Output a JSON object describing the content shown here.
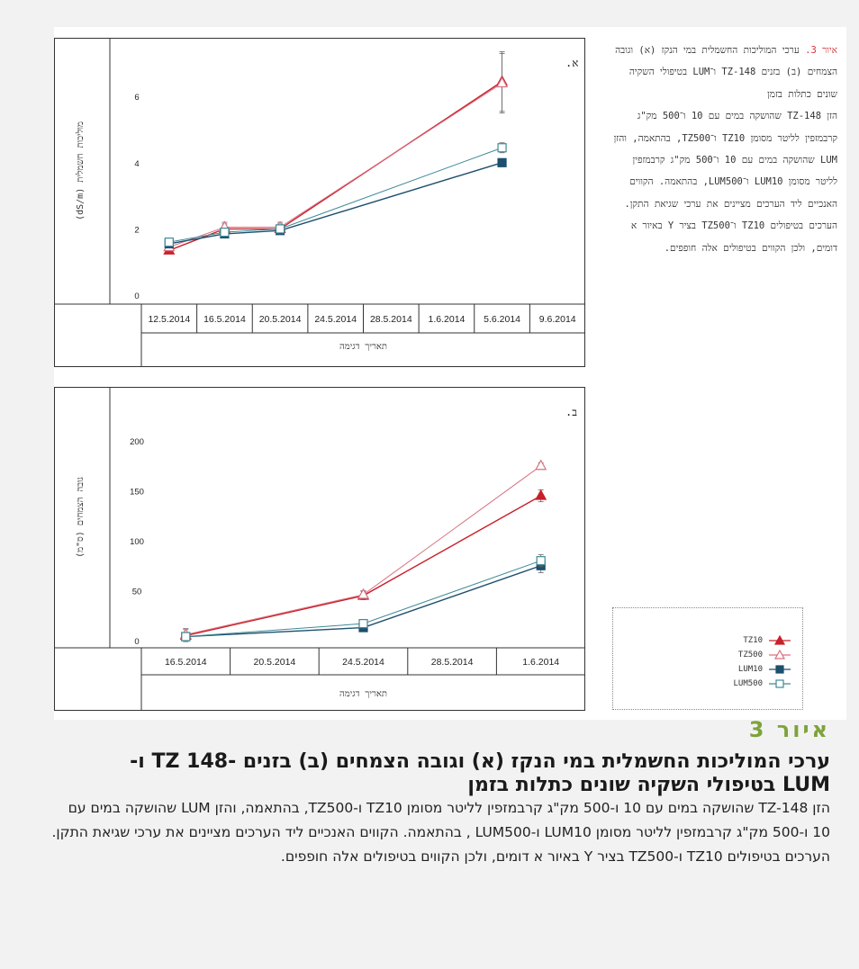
{
  "side_caption": {
    "label": "איור 3.",
    "text": "ערכי המוליכות החשמלית במי הנקז (א) וגובה הצמחים (ב) בזנים TZ-148 ו־LUM בטיפולי השקיה שונים כתלות בזמן",
    "body": "הזן TZ-148 שהושקה במים עם 10 ו־500 מק\"ג קרבמזפין לליטר מסומן TZ10 ו־TZ500, בהתאמה, והזן LUM שהושקה במים עם 10 ו־500 מק\"ג קרבמזפין לליטר מסומן LUM10 ו־LUM500, בהתאמה. הקווים האנכיים ליד הערכים מציינים את ערכי שגיאת התקן. הערכים בטיפולים TZ10 ו־TZ500 בציר Y באיור א דומים, ולכן הקווים בטיפולים אלה חופפים."
  },
  "legend": [
    {
      "name": "TZ10",
      "color": "#c8202a",
      "marker": "triangle-filled-icon"
    },
    {
      "name": "TZ500",
      "color": "#d87080",
      "marker": "triangle-open-icon"
    },
    {
      "name": "LUM10",
      "color": "#1d4f6e",
      "marker": "square-filled-icon"
    },
    {
      "name": "LUM500",
      "color": "#3f8a96",
      "marker": "square-open-icon"
    }
  ],
  "chart_data": [
    {
      "type": "line",
      "panel_label": "א.",
      "ylabel": "מוליכות חשמלית (dS/m)",
      "xlabel": "תאריך דגימה",
      "categories": [
        "12.5.2014",
        "16.5.2014",
        "20.5.2014",
        "24.5.2014",
        "28.5.2014",
        "1.6.2014",
        "5.6.2014",
        "9.6.2014"
      ],
      "y_ticks": [
        "0",
        "2",
        "4",
        "6"
      ],
      "ylim": [
        0,
        7.5
      ],
      "grid": false,
      "series": [
        {
          "name": "TZ10",
          "x": [
            0,
            1,
            2,
            6
          ],
          "values": [
            1.35,
            2.0,
            2.0,
            6.45
          ],
          "err": [
            0.1,
            0.15,
            0.15,
            0.9
          ]
        },
        {
          "name": "TZ500",
          "x": [
            0,
            1,
            2,
            6
          ],
          "values": [
            1.45,
            2.05,
            2.05,
            6.4
          ],
          "err": [
            0.1,
            0.15,
            0.15,
            0.9
          ]
        },
        {
          "name": "LUM10",
          "x": [
            0,
            1,
            2,
            6
          ],
          "values": [
            1.55,
            1.85,
            1.95,
            4.0
          ],
          "err": [
            0.1,
            0.1,
            0.1,
            0.12
          ]
        },
        {
          "name": "LUM500",
          "x": [
            0,
            1,
            2,
            6
          ],
          "values": [
            1.6,
            1.9,
            2.0,
            4.45
          ],
          "err": [
            0.1,
            0.1,
            0.1,
            0.15
          ]
        }
      ]
    },
    {
      "type": "line",
      "panel_label": "ב.",
      "ylabel": "גובה הצמחים (ס\"מ)",
      "xlabel": "תאריך דגימה",
      "categories": [
        "16.5.2014",
        "20.5.2014",
        "24.5.2014",
        "28.5.2014",
        "1.6.2014"
      ],
      "y_ticks": [
        "0",
        "50",
        "100",
        "150",
        "200"
      ],
      "ylim": [
        0,
        245
      ],
      "grid": false,
      "series": [
        {
          "name": "TZ10",
          "x": [
            0,
            2,
            4
          ],
          "values": [
            5,
            45,
            145
          ],
          "err": [
            6,
            4,
            6
          ]
        },
        {
          "name": "TZ500",
          "x": [
            0,
            2,
            4
          ],
          "values": [
            6,
            46,
            175
          ],
          "err": [
            6,
            4,
            3
          ]
        },
        {
          "name": "LUM10",
          "x": [
            0,
            2,
            4
          ],
          "values": [
            4,
            13,
            75
          ],
          "err": [
            3,
            4,
            7
          ]
        },
        {
          "name": "LUM500",
          "x": [
            0,
            2,
            4
          ],
          "values": [
            4,
            17,
            80
          ],
          "err": [
            3,
            4,
            6
          ]
        }
      ]
    }
  ],
  "figure_number": "איור 3",
  "figure_title": "ערכי המוליכות החשמלית במי הנקז (א) וגובה הצמחים (ב) בזנים -TZ 148 ו-LUM בטיפולי השקיה שונים כתלות בזמן",
  "figure_body": "הזן TZ-148 שהושקה במים עם 10 ו-500 מק\"ג קרבמזפין לליטר מסומן TZ10 ו-TZ500, בהתאמה, והזן LUM שהושקה במים עם 10 ו-500 מק\"ג קרבמזפין לליטר מסומן LUM10 ו-LUM500 , בהתאמה. הקווים האנכיים ליד הערכים מציינים את ערכי שגיאת התקן. הערכים בטיפולים TZ10 ו-TZ500 בציר Y באיור א דומים, ולכן הקווים בטיפולים אלה חופפים."
}
